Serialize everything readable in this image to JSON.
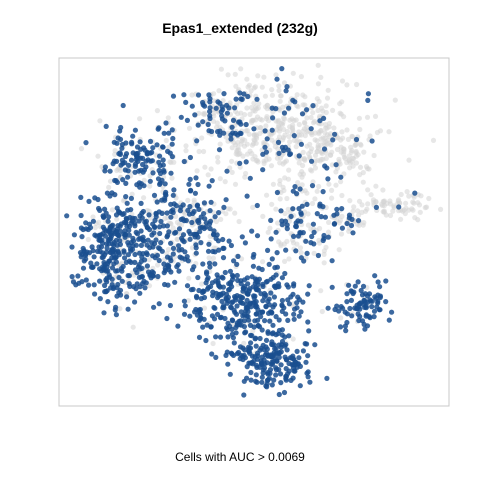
{
  "chart_data": {
    "type": "scatter",
    "title": "Epas1_extended (232g)",
    "xlabel": "Cells with AUC > 0.0069",
    "ylabel": "",
    "grid": false,
    "legend": "none",
    "colors": {
      "high": "#1a4f8f",
      "low": "#d3d3d3"
    },
    "series": [
      {
        "values": []
      },
      {
        "values": []
      }
    ]
  }
}
